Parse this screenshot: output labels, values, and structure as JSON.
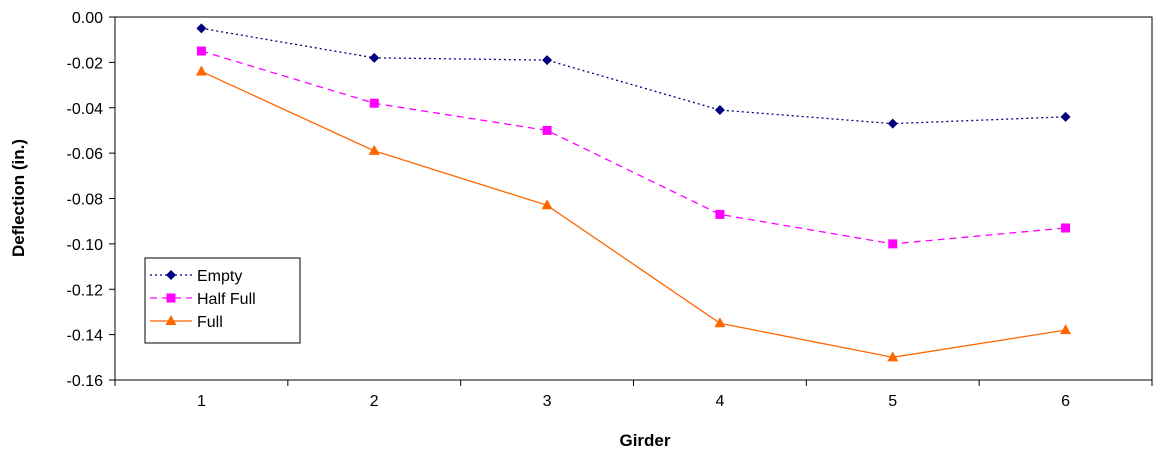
{
  "chart_data": {
    "type": "line",
    "title": "",
    "xlabel": "Girder",
    "ylabel": "Deflection (in.)",
    "x": [
      1,
      2,
      3,
      4,
      5,
      6
    ],
    "ylim": [
      -0.16,
      0.0
    ],
    "yticks": [
      0.0,
      -0.02,
      -0.04,
      -0.06,
      -0.08,
      -0.1,
      -0.12,
      -0.14,
      -0.16
    ],
    "ytick_labels": [
      "0.00",
      "-0.02",
      "-0.04",
      "-0.06",
      "-0.08",
      "-0.10",
      "-0.12",
      "-0.14",
      "-0.16"
    ],
    "grid": false,
    "legend_position": "lower-left",
    "series": [
      {
        "name": "Empty",
        "values": [
          -0.005,
          -0.018,
          -0.019,
          -0.041,
          -0.047,
          -0.044
        ],
        "color": "#000080",
        "marker": "diamond",
        "line": "dotted"
      },
      {
        "name": "Half Full",
        "values": [
          -0.015,
          -0.038,
          -0.05,
          -0.087,
          -0.1,
          -0.093
        ],
        "color": "#FF00FF",
        "marker": "square",
        "line": "dashed"
      },
      {
        "name": "Full",
        "values": [
          -0.024,
          -0.059,
          -0.083,
          -0.135,
          -0.15,
          -0.138
        ],
        "color": "#FF6600",
        "marker": "triangle",
        "line": "solid"
      }
    ]
  }
}
